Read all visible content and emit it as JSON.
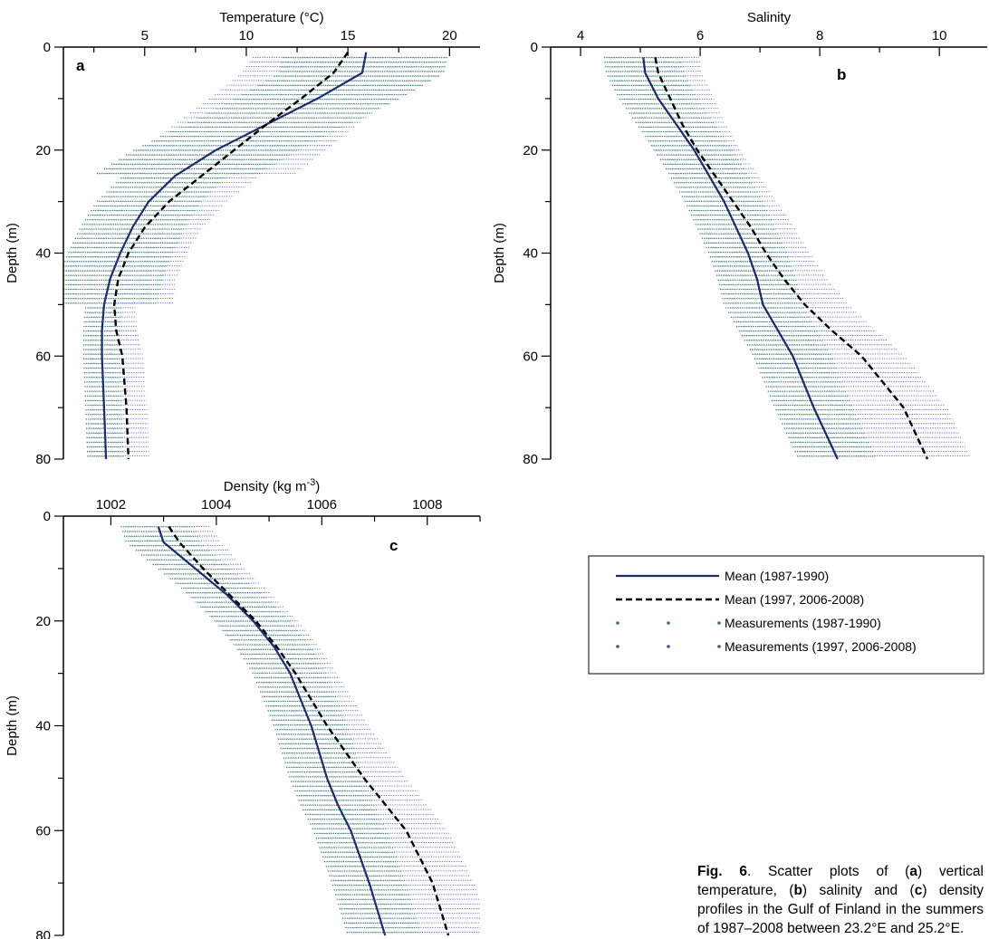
{
  "chart_data": [
    {
      "panel": "a",
      "type": "scatter",
      "xlabel": "Temperature (°C)",
      "ylabel": "Depth (m)",
      "xlim": [
        1,
        21.5
      ],
      "ylim": [
        80,
        0
      ],
      "xticks": [
        5,
        10,
        15,
        20
      ],
      "yticks": [
        0,
        20,
        40,
        60,
        80
      ],
      "series": [
        {
          "name": "Mean (1987-1990)",
          "style": "solid",
          "color": "#1f2b6b",
          "x": [
            15.9,
            15.7,
            13.5,
            11.0,
            8.5,
            6.5,
            5.2,
            4.4,
            3.8,
            3.3,
            3.0,
            2.9,
            2.9,
            3.0,
            3.1
          ],
          "y": [
            1,
            5,
            10,
            15,
            20,
            25,
            30,
            35,
            40,
            45,
            50,
            55,
            60,
            70,
            80
          ]
        },
        {
          "name": "Mean (1997, 2006-2008)",
          "style": "dashed",
          "color": "#000000",
          "x": [
            15.0,
            14.3,
            12.7,
            11.0,
            9.4,
            7.8,
            6.2,
            5.0,
            4.2,
            3.7,
            3.5,
            3.6,
            3.9,
            4.1,
            4.2
          ],
          "y": [
            1,
            5,
            10,
            15,
            20,
            25,
            30,
            35,
            40,
            45,
            50,
            55,
            60,
            70,
            80
          ]
        }
      ]
    },
    {
      "panel": "b",
      "type": "scatter",
      "xlabel": "Salinity",
      "ylabel": "Depth (m)",
      "xlim": [
        3.5,
        10.8
      ],
      "ylim": [
        80,
        0
      ],
      "xticks": [
        4,
        6,
        8,
        10
      ],
      "yticks": [
        0,
        20,
        40,
        60,
        80
      ],
      "series": [
        {
          "name": "Mean (1987-1990)",
          "style": "solid",
          "color": "#1f2b6b",
          "x": [
            5.05,
            5.08,
            5.3,
            5.6,
            5.9,
            6.15,
            6.4,
            6.6,
            6.8,
            6.95,
            7.05,
            7.3,
            7.55,
            7.9,
            8.3
          ],
          "y": [
            2,
            5,
            10,
            15,
            20,
            25,
            30,
            35,
            40,
            45,
            50,
            55,
            60,
            70,
            80
          ]
        },
        {
          "name": "Mean (1997, 2006-2008)",
          "style": "dashed",
          "color": "#000000",
          "x": [
            5.25,
            5.3,
            5.5,
            5.7,
            5.95,
            6.25,
            6.55,
            6.85,
            7.1,
            7.4,
            7.75,
            8.2,
            8.7,
            9.4,
            9.8
          ],
          "y": [
            2,
            5,
            10,
            15,
            20,
            25,
            30,
            35,
            40,
            45,
            50,
            55,
            60,
            70,
            80
          ]
        }
      ]
    },
    {
      "panel": "c",
      "type": "scatter",
      "xlabel": "Density (kg m",
      "xlabel_sup": "-3",
      "xlabel_close": ")",
      "ylabel": "Depth (m)",
      "xlim": [
        1001.1,
        1009.0
      ],
      "ylim": [
        80,
        0
      ],
      "xticks": [
        1002,
        1004,
        1006,
        1008
      ],
      "yticks": [
        0,
        20,
        40,
        60,
        80
      ],
      "series": [
        {
          "name": "Mean (1987-1990)",
          "style": "solid",
          "color": "#1f2b6b",
          "x": [
            1002.9,
            1003.0,
            1003.6,
            1004.2,
            1004.7,
            1005.1,
            1005.4,
            1005.6,
            1005.8,
            1005.95,
            1006.1,
            1006.3,
            1006.55,
            1006.9,
            1007.2
          ],
          "y": [
            2,
            5,
            10,
            15,
            20,
            25,
            30,
            35,
            40,
            45,
            50,
            55,
            60,
            70,
            80
          ]
        },
        {
          "name": "Mean (1997, 2006-2008)",
          "style": "dashed",
          "color": "#000000",
          "x": [
            1003.1,
            1003.3,
            1003.75,
            1004.25,
            1004.75,
            1005.15,
            1005.5,
            1005.8,
            1006.1,
            1006.45,
            1006.8,
            1007.2,
            1007.6,
            1008.1,
            1008.4
          ],
          "y": [
            2,
            5,
            10,
            15,
            20,
            25,
            30,
            35,
            40,
            45,
            50,
            55,
            60,
            70,
            80
          ]
        }
      ]
    }
  ],
  "legend": {
    "items": [
      {
        "label": "Mean (1987-1990)",
        "kind": "line-solid",
        "color": "#1f2b6b"
      },
      {
        "label": "Mean (1997, 2006-2008)",
        "kind": "line-dashed",
        "color": "#000000"
      },
      {
        "label": "Measurements (1987-1990)",
        "kind": "dots",
        "color": "#2e7d4f"
      },
      {
        "label": "Measurements (1997, 2006-2008)",
        "kind": "dots",
        "color": "#3b4ea8"
      }
    ]
  },
  "caption": {
    "fig": "Fig. 6",
    "text_1": ". Scatter plots of (",
    "a": "a",
    "text_2": ") vertical temperature, (",
    "b": "b",
    "text_3": ") salinity and (",
    "c": "c",
    "text_4": ") density profiles in the Gulf of Finland in the summers of 1987–2008 between 23.2°E and 25.2°E."
  },
  "colors": {
    "green_measurements": "#2e7d4f",
    "blue_measurements": "#3b4ea8",
    "mean_solid": "#1f2b6b",
    "mean_dashed": "#000000"
  }
}
